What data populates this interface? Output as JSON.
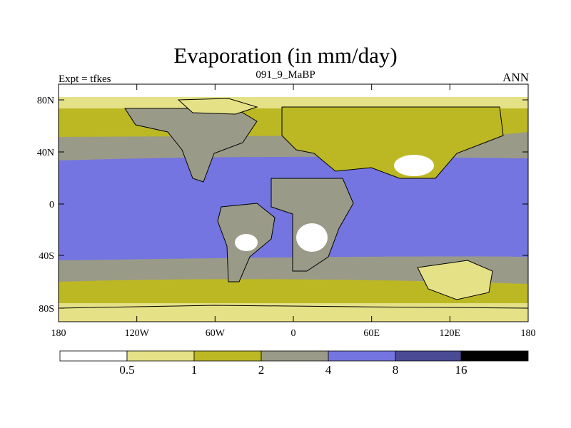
{
  "title": "Evaporation (in mm/day)",
  "subtitle": "091_9_MaBP",
  "left_label": "Expt = tfkes",
  "right_label": "ANN",
  "lat_ticks": [
    "80N",
    "40N",
    "0",
    "40S",
    "80S"
  ],
  "lon_ticks": [
    "180",
    "120W",
    "60W",
    "0",
    "60E",
    "120E",
    "180"
  ],
  "colorbar": {
    "colors": [
      "#ffffff",
      "#e5e187",
      "#bcb823",
      "#9a9a88",
      "#7475e0",
      "#4a4b94",
      "#000000"
    ],
    "labels": [
      "0.5",
      "1",
      "2",
      "4",
      "8",
      "16"
    ]
  }
}
